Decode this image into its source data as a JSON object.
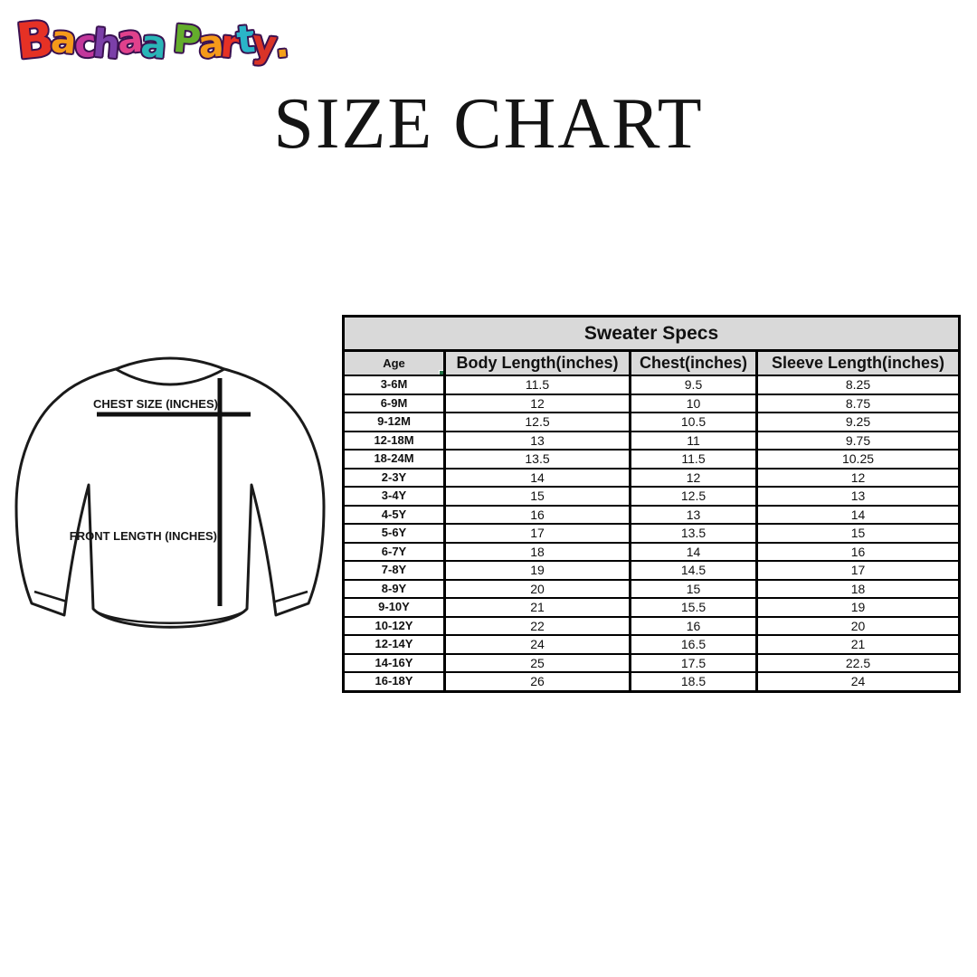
{
  "page": {
    "background": "#ffffff"
  },
  "logo": {
    "text": "Bachaa Party.",
    "outline_color": "#3a1150",
    "letter_colors": [
      "#e53125",
      "#f59a1a",
      "#c2379b",
      "#7b3fa8",
      "#e0418c",
      "#2ab5b8",
      "#000000",
      "#64ad2c",
      "#f59a1a",
      "#e53125",
      "#2ab5c8",
      "#d93327",
      "#f5a01a"
    ]
  },
  "title": "SIZE CHART",
  "diagram": {
    "chest_label": "CHEST SIZE (INCHES)",
    "length_label": "FRONT LENGTH (INCHES)"
  },
  "table": {
    "title": "Sweater Specs",
    "columns": [
      "Age",
      "Body Length(inches)",
      "Chest(inches)",
      "Sleeve Length(inches)"
    ],
    "rows": [
      [
        "3-6M",
        "11.5",
        "9.5",
        "8.25"
      ],
      [
        "6-9M",
        "12",
        "10",
        "8.75"
      ],
      [
        "9-12M",
        "12.5",
        "10.5",
        "9.25"
      ],
      [
        "12-18M",
        "13",
        "11",
        "9.75"
      ],
      [
        "18-24M",
        "13.5",
        "11.5",
        "10.25"
      ],
      [
        "2-3Y",
        "14",
        "12",
        "12"
      ],
      [
        "3-4Y",
        "15",
        "12.5",
        "13"
      ],
      [
        "4-5Y",
        "16",
        "13",
        "14"
      ],
      [
        "5-6Y",
        "17",
        "13.5",
        "15"
      ],
      [
        "6-7Y",
        "18",
        "14",
        "16"
      ],
      [
        "7-8Y",
        "19",
        "14.5",
        "17"
      ],
      [
        "8-9Y",
        "20",
        "15",
        "18"
      ],
      [
        "9-10Y",
        "21",
        "15.5",
        "19"
      ],
      [
        "10-12Y",
        "22",
        "16",
        "20"
      ],
      [
        "12-14Y",
        "24",
        "16.5",
        "21"
      ],
      [
        "14-16Y",
        "25",
        "17.5",
        "22.5"
      ],
      [
        "16-18Y",
        "26",
        "18.5",
        "24"
      ]
    ],
    "colors": {
      "header_bg": "#d9d9d9",
      "border": "#000000",
      "selected_cell_border": "#217346"
    }
  }
}
